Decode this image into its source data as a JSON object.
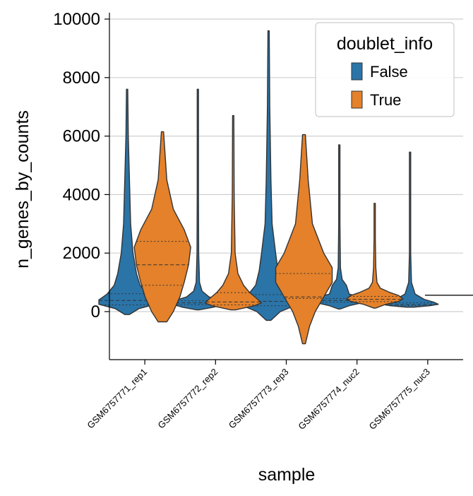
{
  "chart_data": {
    "type": "violin",
    "title": "",
    "xlabel": "sample",
    "ylabel": "n_genes_by_counts",
    "ylim": [
      -1700,
      10200
    ],
    "yticks": [
      0,
      2000,
      4000,
      6000,
      8000,
      10000
    ],
    "grid": "horizontal",
    "legend": {
      "title": "doublet_info",
      "placement": "top-right"
    },
    "categories": [
      "GSM6757771_rep1",
      "GSM6757772_rep2",
      "GSM6757773_rep3",
      "GSM6757774_nuc2",
      "GSM6757775_nuc3"
    ],
    "series": [
      {
        "name": "False",
        "color": "#2a74a8",
        "violins": [
          {
            "min": -100,
            "max": 7600,
            "q1": 230,
            "median": 380,
            "q3": 610,
            "profile": [
              [
                -100,
                0.02
              ],
              [
                100,
                0.1
              ],
              [
                250,
                0.24
              ],
              [
                400,
                0.24
              ],
              [
                600,
                0.17
              ],
              [
                900,
                0.11
              ],
              [
                1300,
                0.08
              ],
              [
                2000,
                0.05
              ],
              [
                3000,
                0.03
              ],
              [
                4500,
                0.02
              ],
              [
                6000,
                0.01
              ],
              [
                7600,
                0.005
              ]
            ]
          },
          {
            "min": 60,
            "max": 7600,
            "q1": 240,
            "median": 300,
            "q3": 370,
            "profile": [
              [
                60,
                0.04
              ],
              [
                150,
                0.55
              ],
              [
                250,
                0.9
              ],
              [
                320,
                1.0
              ],
              [
                400,
                0.75
              ],
              [
                500,
                0.4
              ],
              [
                700,
                0.15
              ],
              [
                1000,
                0.06
              ],
              [
                2000,
                0.03
              ],
              [
                4000,
                0.02
              ],
              [
                6000,
                0.01
              ],
              [
                7600,
                0.005
              ]
            ]
          },
          {
            "min": -300,
            "max": 9600,
            "q1": 200,
            "median": 350,
            "q3": 580,
            "profile": [
              [
                -300,
                0.02
              ],
              [
                0,
                0.1
              ],
              [
                200,
                0.22
              ],
              [
                350,
                0.24
              ],
              [
                550,
                0.18
              ],
              [
                900,
                0.11
              ],
              [
                1400,
                0.08
              ],
              [
                2000,
                0.06
              ],
              [
                3000,
                0.03
              ],
              [
                4500,
                0.02
              ],
              [
                7000,
                0.01
              ],
              [
                9600,
                0.005
              ]
            ]
          },
          {
            "min": 90,
            "max": 5700,
            "q1": 320,
            "median": 380,
            "q3": 450,
            "profile": [
              [
                90,
                0.04
              ],
              [
                200,
                0.35
              ],
              [
                300,
                0.8
              ],
              [
                380,
                1.0
              ],
              [
                480,
                0.8
              ],
              [
                600,
                0.35
              ],
              [
                900,
                0.25
              ],
              [
                1100,
                0.1
              ],
              [
                1500,
                0.04
              ],
              [
                3000,
                0.02
              ],
              [
                5700,
                0.005
              ]
            ]
          },
          {
            "min": 150,
            "max": 5450,
            "q1": 200,
            "median": 240,
            "q3": 300,
            "profile": [
              [
                150,
                0.12
              ],
              [
                200,
                0.7
              ],
              [
                250,
                1.0
              ],
              [
                320,
                0.85
              ],
              [
                420,
                0.5
              ],
              [
                600,
                0.18
              ],
              [
                1000,
                0.05
              ],
              [
                2000,
                0.02
              ],
              [
                3500,
                0.01
              ],
              [
                5450,
                0.005
              ]
            ]
          }
        ]
      },
      {
        "name": "True",
        "color": "#e4812a",
        "violins": [
          {
            "min": -350,
            "max": 6150,
            "q1": 900,
            "median": 1600,
            "q3": 2400,
            "profile": [
              [
                -350,
                0.02
              ],
              [
                0,
                0.05
              ],
              [
                500,
                0.08
              ],
              [
                1000,
                0.1
              ],
              [
                1600,
                0.12
              ],
              [
                2200,
                0.13
              ],
              [
                2800,
                0.1
              ],
              [
                3500,
                0.05
              ],
              [
                4500,
                0.02
              ],
              [
                6150,
                0.005
              ]
            ]
          },
          {
            "min": 60,
            "max": 6700,
            "q1": 230,
            "median": 330,
            "q3": 650,
            "profile": [
              [
                60,
                0.05
              ],
              [
                200,
                0.45
              ],
              [
                300,
                0.6
              ],
              [
                450,
                0.5
              ],
              [
                650,
                0.35
              ],
              [
                900,
                0.22
              ],
              [
                1300,
                0.1
              ],
              [
                2000,
                0.04
              ],
              [
                4000,
                0.02
              ],
              [
                6700,
                0.005
              ]
            ]
          },
          {
            "min": -1100,
            "max": 6050,
            "q1": 450,
            "median": 500,
            "q3": 1300,
            "profile": [
              [
                -1100,
                0.005
              ],
              [
                -500,
                0.02
              ],
              [
                0,
                0.04
              ],
              [
                500,
                0.07
              ],
              [
                1000,
                0.1
              ],
              [
                1500,
                0.1
              ],
              [
                2000,
                0.07
              ],
              [
                3000,
                0.03
              ],
              [
                4500,
                0.015
              ],
              [
                6050,
                0.005
              ]
            ]
          },
          {
            "min": 120,
            "max": 3700,
            "q1": 340,
            "median": 420,
            "q3": 520,
            "profile": [
              [
                120,
                0.03
              ],
              [
                250,
                0.4
              ],
              [
                350,
                0.85
              ],
              [
                430,
                1.0
              ],
              [
                550,
                0.85
              ],
              [
                650,
                0.55
              ],
              [
                800,
                0.2
              ],
              [
                1000,
                0.08
              ],
              [
                1500,
                0.04
              ],
              [
                2500,
                0.02
              ],
              [
                3700,
                0.005
              ]
            ]
          },
          {
            "min": 560,
            "max": 560,
            "q1": 560,
            "median": 560,
            "q3": 560,
            "profile": []
          }
        ]
      }
    ]
  }
}
